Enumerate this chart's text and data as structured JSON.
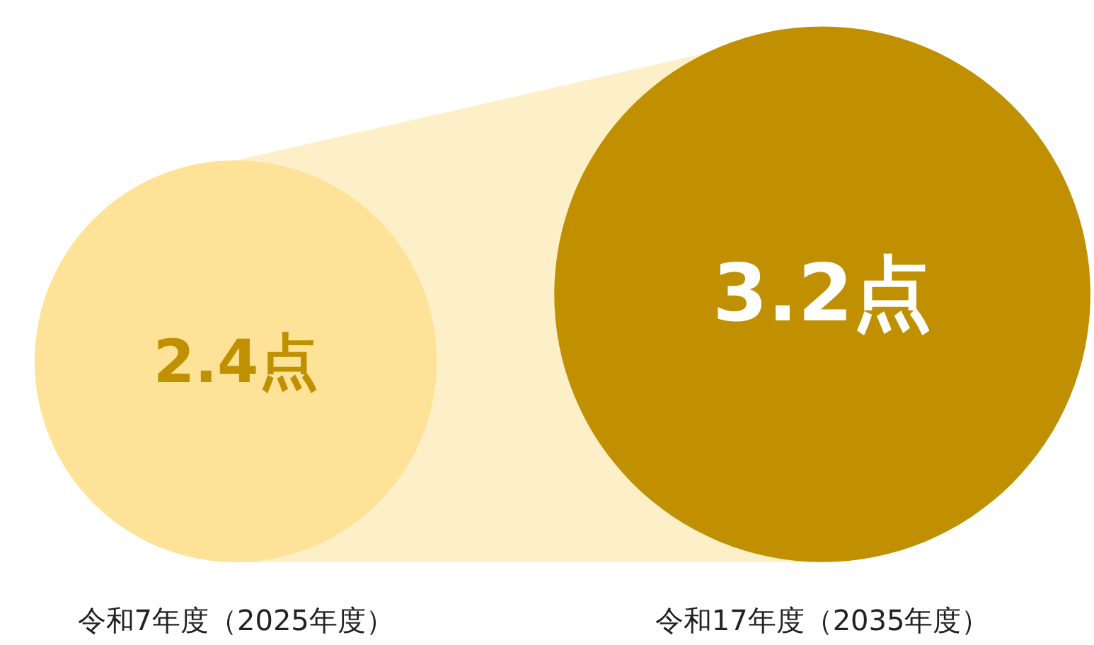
{
  "chart_data": {
    "type": "other",
    "categories": [
      "令和7年度（2025年度）",
      "令和17年度（2035年度）"
    ],
    "values": [
      2.4,
      3.2
    ],
    "value_labels": [
      "2.4点",
      "3.2点"
    ],
    "colors": [
      "#fde298",
      "#c09000"
    ]
  }
}
